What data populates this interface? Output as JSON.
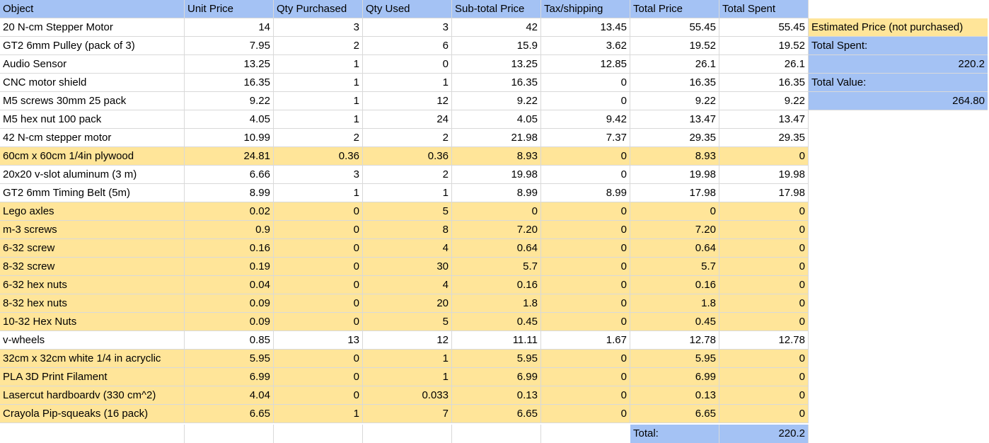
{
  "headers": [
    "Object",
    "Unit Price",
    "Qty Purchased",
    "Qty Used",
    "Sub-total Price",
    "Tax/shipping",
    "Total Price",
    "Total Spent"
  ],
  "rows": [
    {
      "hl": false,
      "cells": [
        "20 N-cm Stepper Motor",
        "14",
        "3",
        "3",
        "42",
        "13.45",
        "55.45",
        "55.45"
      ]
    },
    {
      "hl": false,
      "cells": [
        "GT2 6mm Pulley (pack of 3)",
        "7.95",
        "2",
        "6",
        "15.9",
        "3.62",
        "19.52",
        "19.52"
      ]
    },
    {
      "hl": false,
      "cells": [
        "Audio Sensor",
        "13.25",
        "1",
        "0",
        "13.25",
        "12.85",
        "26.1",
        "26.1"
      ]
    },
    {
      "hl": false,
      "cells": [
        "CNC motor shield",
        "16.35",
        "1",
        "1",
        "16.35",
        "0",
        "16.35",
        "16.35"
      ]
    },
    {
      "hl": false,
      "cells": [
        "M5 screws 30mm 25 pack",
        "9.22",
        "1",
        "12",
        "9.22",
        "0",
        "9.22",
        "9.22"
      ]
    },
    {
      "hl": false,
      "cells": [
        "M5 hex nut 100 pack",
        "4.05",
        "1",
        "24",
        "4.05",
        "9.42",
        "13.47",
        "13.47"
      ]
    },
    {
      "hl": false,
      "cells": [
        "42 N-cm stepper motor",
        "10.99",
        "2",
        "2",
        "21.98",
        "7.37",
        "29.35",
        "29.35"
      ]
    },
    {
      "hl": true,
      "cells": [
        "60cm x 60cm 1/4in plywood",
        "24.81",
        "0.36",
        "0.36",
        "8.93",
        "0",
        "8.93",
        "0"
      ]
    },
    {
      "hl": false,
      "cells": [
        "20x20 v-slot aluminum (3 m)",
        "6.66",
        "3",
        "2",
        "19.98",
        "0",
        "19.98",
        "19.98"
      ]
    },
    {
      "hl": false,
      "cells": [
        "GT2 6mm Timing Belt (5m)",
        "8.99",
        "1",
        "1",
        "8.99",
        "8.99",
        "17.98",
        "17.98"
      ]
    },
    {
      "hl": true,
      "cells": [
        "Lego axles",
        "0.02",
        "0",
        "5",
        "0",
        "0",
        "0",
        "0"
      ]
    },
    {
      "hl": true,
      "cells": [
        "m-3 screws",
        "0.9",
        "0",
        "8",
        "7.20",
        "0",
        "7.20",
        "0"
      ]
    },
    {
      "hl": true,
      "cells": [
        "6-32 screw",
        "0.16",
        "0",
        "4",
        "0.64",
        "0",
        "0.64",
        "0"
      ]
    },
    {
      "hl": true,
      "cells": [
        "8-32 screw",
        "0.19",
        "0",
        "30",
        "5.7",
        "0",
        "5.7",
        "0"
      ]
    },
    {
      "hl": true,
      "cells": [
        "6-32 hex nuts",
        "0.04",
        "0",
        "4",
        "0.16",
        "0",
        "0.16",
        "0"
      ]
    },
    {
      "hl": true,
      "cells": [
        "8-32 hex nuts",
        "0.09",
        "0",
        "20",
        "1.8",
        "0",
        "1.8",
        "0"
      ]
    },
    {
      "hl": true,
      "cells": [
        "10-32 Hex Nuts",
        "0.09",
        "0",
        "5",
        "0.45",
        "0",
        "0.45",
        "0"
      ]
    },
    {
      "hl": false,
      "cells": [
        "v-wheels",
        "0.85",
        "13",
        "12",
        "11.11",
        "1.67",
        "12.78",
        "12.78"
      ]
    },
    {
      "hl": true,
      "cells": [
        "32cm x 32cm white 1/4 in acryclic",
        "5.95",
        "0",
        "1",
        "5.95",
        "0",
        "5.95",
        "0"
      ]
    },
    {
      "hl": true,
      "cells": [
        "PLA 3D Print Filament",
        "6.99",
        "0",
        "1",
        "6.99",
        "0",
        "6.99",
        "0"
      ]
    },
    {
      "hl": true,
      "cells": [
        "Lasercut hardboardv (330 cm^2)",
        "4.04",
        "0",
        "0.033",
        "0.13",
        "0",
        "0.13",
        "0"
      ]
    },
    {
      "hl": true,
      "cells": [
        "Crayola Pip-squeaks (16 pack)",
        "6.65",
        "1",
        "7",
        "6.65",
        "0",
        "6.65",
        "0"
      ]
    }
  ],
  "side": {
    "legend": "Estimated Price (not purchased)",
    "spent_label": "Total Spent:",
    "spent_value": "220.2",
    "value_label": "Total Value:",
    "value_amount": "264.80"
  },
  "footer": {
    "label": "Total:",
    "value": "220.2"
  },
  "colors": {
    "header": "#a4c2f4",
    "estimated": "#ffe599",
    "gridline": "#d9d9d9"
  }
}
